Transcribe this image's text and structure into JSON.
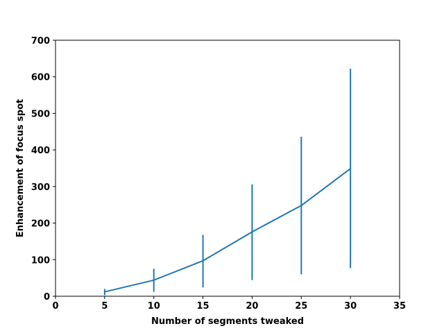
{
  "chart_data": {
    "type": "line",
    "title": "",
    "xlabel": "Number of segments tweaked",
    "ylabel": "Enhancement of focus spot",
    "xlim": [
      0,
      35
    ],
    "ylim": [
      0,
      700
    ],
    "xticks": [
      0,
      5,
      10,
      15,
      20,
      25,
      30,
      35
    ],
    "yticks": [
      0,
      100,
      200,
      300,
      400,
      500,
      600,
      700
    ],
    "grid": false,
    "legend": "none",
    "color": "#1f77b4",
    "series": [
      {
        "x": [
          5,
          10,
          15,
          20,
          25,
          30
        ],
        "y": [
          12,
          44,
          97,
          176,
          248,
          349
        ],
        "error_low": [
          3,
          12,
          24,
          44,
          60,
          77
        ],
        "error_high": [
          20,
          75,
          168,
          306,
          436,
          622
        ]
      }
    ]
  }
}
